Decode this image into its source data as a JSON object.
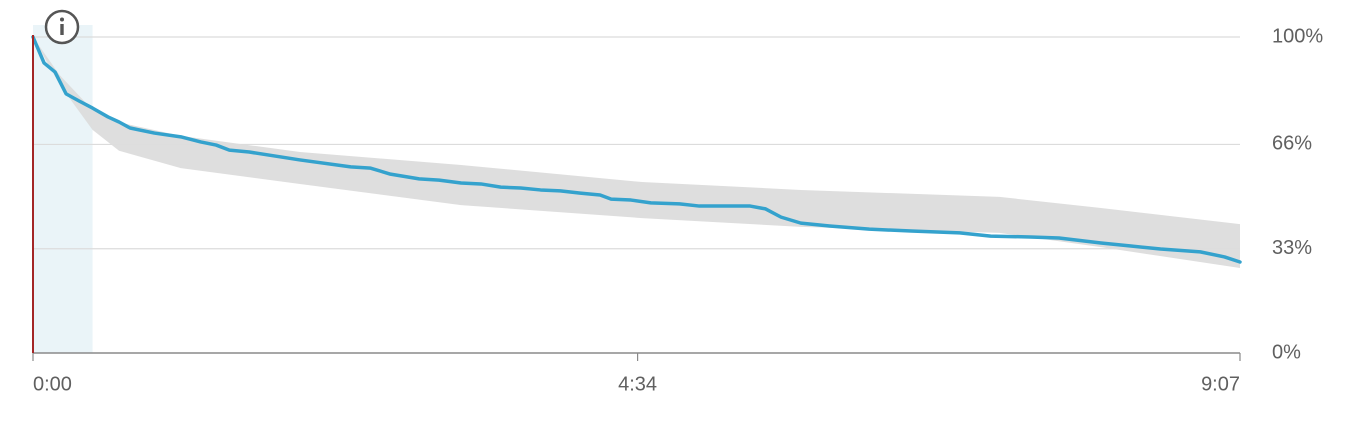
{
  "chart_data": {
    "type": "line",
    "x": [
      0,
      5,
      10,
      15,
      21,
      27,
      34,
      39,
      44,
      55,
      67,
      76,
      83,
      89,
      98,
      121,
      144,
      153,
      162,
      175,
      184,
      194,
      203,
      212,
      221,
      230,
      239,
      248,
      257,
      262,
      271,
      280,
      293,
      302,
      325,
      332,
      339,
      348,
      361,
      379,
      398,
      420,
      434,
      452,
      465,
      484,
      497,
      511,
      529,
      540,
      547
    ],
    "series": [
      {
        "color": "#34a2cd",
        "values": [
          100,
          91.8,
          88.9,
          82,
          79.7,
          77.5,
          74.7,
          73.1,
          71.2,
          69.6,
          68.4,
          66.8,
          65.8,
          64.2,
          63.6,
          61.1,
          58.9,
          58.5,
          56.6,
          55.1,
          54.7,
          53.8,
          53.5,
          52.5,
          52.2,
          51.6,
          51.3,
          50.6,
          50,
          48.7,
          48.4,
          47.5,
          47.2,
          46.5,
          46.5,
          45.6,
          43,
          41.1,
          40.2,
          39.2,
          38.6,
          38,
          37,
          36.7,
          36.4,
          34.8,
          33.9,
          32.9,
          32,
          30.4,
          28.8
        ]
      }
    ],
    "band": {
      "color": "#dcdcdc",
      "x": [
        0,
        12,
        27,
        39,
        67,
        121,
        194,
        276,
        348,
        438,
        484,
        547
      ],
      "upper": [
        100,
        88,
        76.9,
        73,
        68.7,
        63.6,
        59.5,
        54.1,
        51.6,
        49.4,
        45.9,
        40.8
      ],
      "lower": [
        100,
        85,
        70.6,
        64,
        58.5,
        53.5,
        46.8,
        42.7,
        39.9,
        38,
        33.5,
        26.9
      ]
    },
    "highlight": {
      "color": "#eaf4f8",
      "range": [
        0,
        27
      ]
    },
    "xlim": [
      0,
      547
    ],
    "xticks": [
      {
        "value": 0,
        "label": "0:00"
      },
      {
        "value": 274,
        "label": "4:34"
      },
      {
        "value": 547,
        "label": "9:07"
      }
    ],
    "ylim": [
      0,
      100
    ],
    "yticks": [
      {
        "value": 0,
        "label": "0%"
      },
      {
        "value": 33,
        "label": "33%"
      },
      {
        "value": 66,
        "label": "66%"
      },
      {
        "value": 100,
        "label": "100%"
      }
    ],
    "grid": true
  }
}
